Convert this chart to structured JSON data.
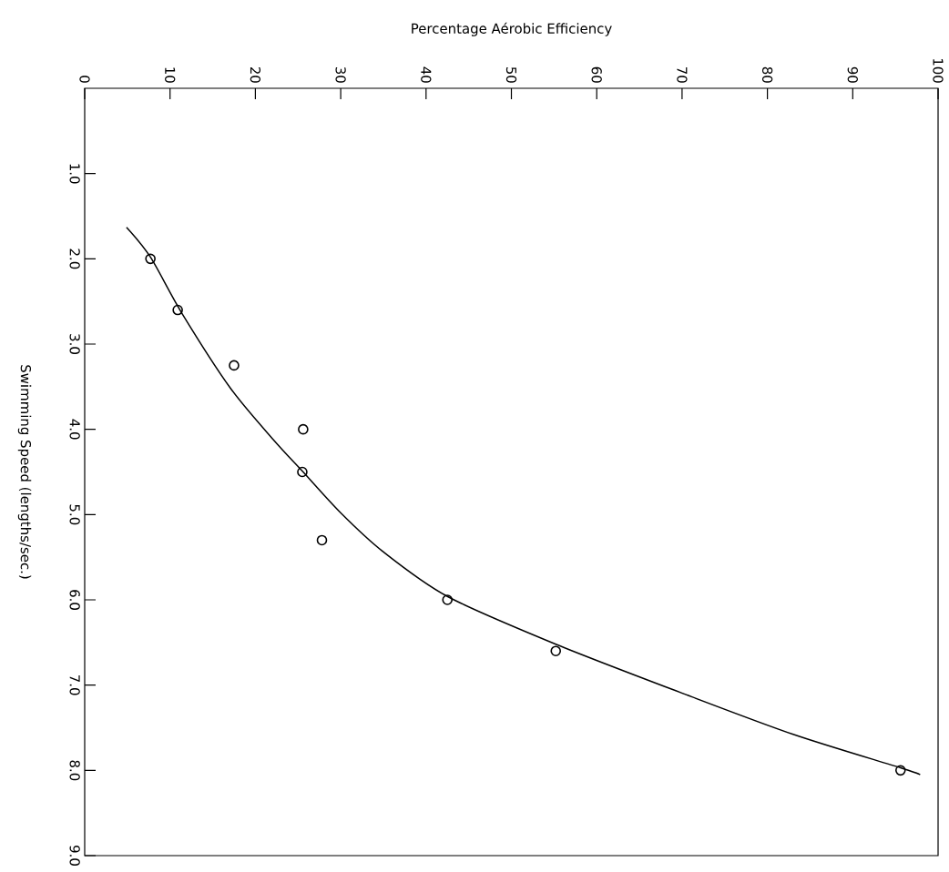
{
  "chart_data": {
    "type": "scatter",
    "xlabel": "Percentage Aérobic Efficiency",
    "ylabel": "Swimming Speed (lengths/sec.)",
    "xlim": [
      0,
      100
    ],
    "ylim": [
      9,
      0
    ],
    "xticks": [
      0,
      10,
      20,
      30,
      40,
      50,
      60,
      70,
      80,
      90,
      100
    ],
    "yticks": [
      {
        "value": 1,
        "label": "1.0"
      },
      {
        "value": 2,
        "label": "2.0"
      },
      {
        "value": 3,
        "label": "3.0"
      },
      {
        "value": 4,
        "label": "4.0"
      },
      {
        "value": 5,
        "label": "5.0"
      },
      {
        "value": 6,
        "label": "6.0"
      },
      {
        "value": 7,
        "label": "7.0"
      },
      {
        "value": 8,
        "label": "8.0"
      },
      {
        "value": 9,
        "label": "9.0"
      }
    ],
    "series": [
      {
        "marker": "circle",
        "color": "#000000",
        "x": [
          7.7,
          10.9,
          17.5,
          25.6,
          25.5,
          27.8,
          42.5,
          55.2,
          95.6
        ],
        "values": [
          2.0,
          2.6,
          3.25,
          4.0,
          4.5,
          5.3,
          6.0,
          6.6,
          8.0
        ]
      },
      {
        "type": "line",
        "marker": "none",
        "color": "#000000",
        "x": [
          4.9,
          7.7,
          11.4,
          17.1,
          22.1,
          25.5,
          29.9,
          34.9,
          42.5,
          55.2,
          69.9,
          83.1,
          95.6,
          97.9
        ],
        "values": [
          1.63,
          1.98,
          2.64,
          3.52,
          4.12,
          4.49,
          4.97,
          5.43,
          5.96,
          6.52,
          7.09,
          7.58,
          7.97,
          8.05
        ]
      }
    ]
  }
}
